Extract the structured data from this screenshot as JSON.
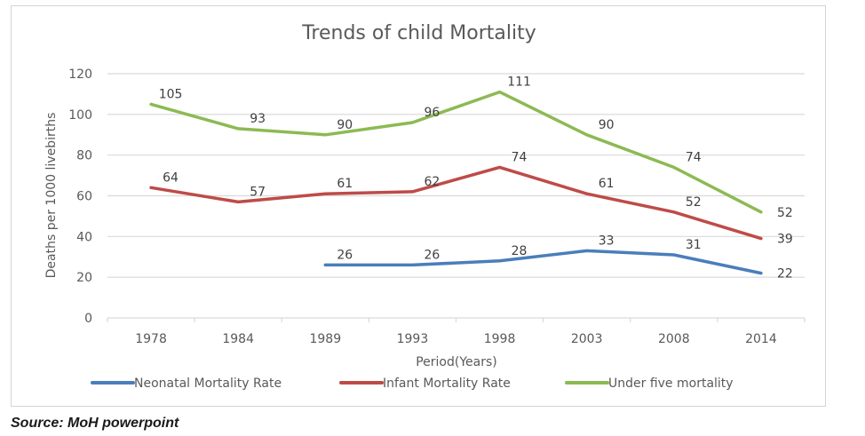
{
  "chart_data": {
    "type": "line",
    "title": "Trends of child Mortality",
    "xlabel": "Period(Years)",
    "ylabel": "Deaths per 1000 livebirths",
    "categories": [
      "1978",
      "1984",
      "1989",
      "1993",
      "1998",
      "2003",
      "2008",
      "2014"
    ],
    "ylim": [
      0,
      120
    ],
    "yticks": [
      0,
      20,
      40,
      60,
      80,
      100,
      120
    ],
    "grid": true,
    "legend_position": "bottom",
    "series": [
      {
        "name": "Neonatal Mortality Rate",
        "color": "#4a7ebb",
        "values": [
          null,
          null,
          26,
          26,
          28,
          33,
          31,
          22
        ]
      },
      {
        "name": "Infant Mortality Rate",
        "color": "#be4b48",
        "values": [
          64,
          57,
          61,
          62,
          74,
          61,
          52,
          39
        ]
      },
      {
        "name": "Under five mortality",
        "color": "#8cba53",
        "values": [
          105,
          93,
          90,
          96,
          111,
          90,
          74,
          52
        ]
      }
    ]
  },
  "source": "Source: MoH powerpoint"
}
